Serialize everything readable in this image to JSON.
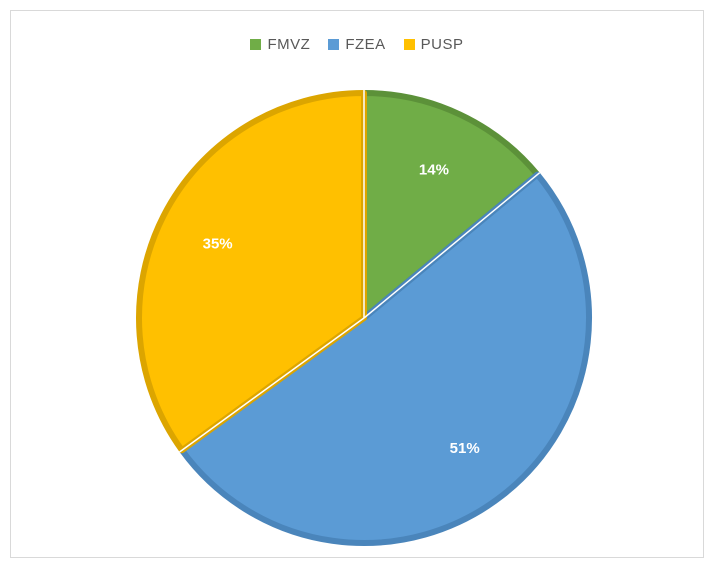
{
  "chart_data": {
    "type": "pie",
    "title": "",
    "legend_position": "top",
    "slices": [
      {
        "name": "FMVZ",
        "value": 14,
        "label": "14%",
        "color": "#70ad47",
        "border": "#5c9139"
      },
      {
        "name": "FZEA",
        "value": 51,
        "label": "51%",
        "color": "#5b9bd5",
        "border": "#4a85bb"
      },
      {
        "name": "PUSP",
        "value": 35,
        "label": "35%",
        "color": "#ffc000",
        "border": "#dca500"
      }
    ]
  }
}
